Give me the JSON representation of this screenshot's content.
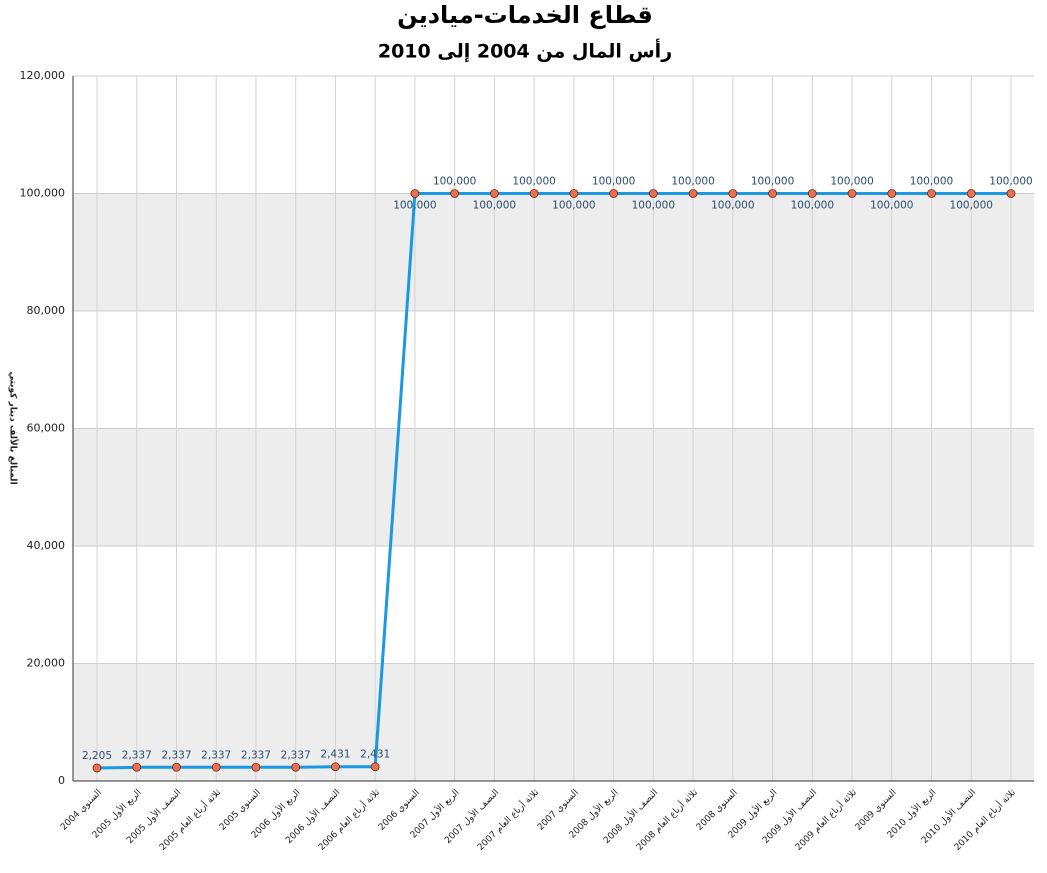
{
  "chart_data": {
    "type": "line",
    "title": "قطاع الخدمات-ميادين",
    "subtitle": "رأس المال من 2004 إلى 2010",
    "y_label": "المبالغ بالألف دينار كويتي",
    "categories": [
      "السنوي 2004",
      "الربع الأول 2005",
      "النصف الأول 2005",
      "ثلاثة أرباع العام 2005",
      "السنوي 2005",
      "الربع الأول 2006",
      "النصف الأول 2006",
      "ثلاثة أرباع العام 2006",
      "السنوي 2006",
      "الربع الأول 2007",
      "النصف الأول 2007",
      "ثلاثة أرباع العام 2007",
      "السنوي 2007",
      "الربع الأول 2008",
      "النصف الأول 2008",
      "ثلاثة أرباع العام 2008",
      "السنوي 2008",
      "الربع الأول 2009",
      "النصف الأول 2009",
      "ثلاثة أرباع العام 2009",
      "السنوي 2009",
      "الربع الأول 2010",
      "النصف الأول 2010",
      "ثلاثة أرباع العام 2010"
    ],
    "values": [
      2205,
      2337,
      2337,
      2337,
      2337,
      2337,
      2431,
      2431,
      100000,
      100000,
      100000,
      100000,
      100000,
      100000,
      100000,
      100000,
      100000,
      100000,
      100000,
      100000,
      100000,
      100000,
      100000,
      100000
    ],
    "value_labels": [
      "2,205",
      "2,337",
      "2,337",
      "2,337",
      "2,337",
      "2,337",
      "2,431",
      "2,431",
      "100,000",
      "100,000",
      "100,000",
      "100,000",
      "100,000",
      "100,000",
      "100,000",
      "100,000",
      "100,000",
      "100,000",
      "100,000",
      "100,000",
      "100,000",
      "100,000",
      "100,000",
      "100,000"
    ],
    "color": "#1a98e3",
    "marker_color": "#ee6f4c",
    "ylim": [
      0,
      120000
    ],
    "yticks": [
      0,
      {
        "value": 20000,
        "label": "20,000"
      },
      {
        "value": 40000,
        "label": "40,000"
      },
      {
        "value": 60000,
        "label": "60,000"
      },
      {
        "value": 80000,
        "label": "80,000"
      },
      {
        "value": 100000,
        "label": "100,000"
      },
      {
        "value": 120000,
        "label": "120,000"
      }
    ],
    "grid": true,
    "band_fill": "#ededed"
  }
}
